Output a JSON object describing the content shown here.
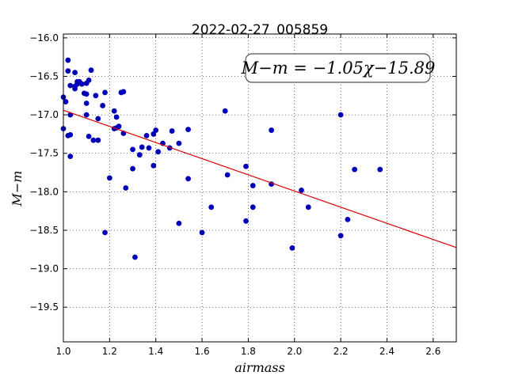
{
  "chart_data": {
    "type": "scatter",
    "title": "2022-02-27_005859",
    "xlabel": "airmass",
    "ylabel": "M−m",
    "xlim": [
      1.0,
      2.7
    ],
    "ylim": [
      -19.95,
      -15.95
    ],
    "y_inverted": true,
    "grid": true,
    "x_ticks": [
      "1.0",
      "1.2",
      "1.4",
      "1.6",
      "1.8",
      "2.0",
      "2.2",
      "2.4",
      "2.6"
    ],
    "y_ticks": [
      "−16.0",
      "−16.5",
      "−17.0",
      "−17.5",
      "−18.0",
      "−18.5",
      "−19.0",
      "−19.5"
    ],
    "annotation": "M−m = −1.05χ−15.89",
    "fit": {
      "slope": -1.05,
      "intercept": -15.89,
      "color": "#dd0000"
    },
    "point_color": "#0000bb",
    "series": [
      {
        "points": [
          [
            1.0,
            -16.77
          ],
          [
            1.0,
            -17.18
          ],
          [
            1.01,
            -16.83
          ],
          [
            1.02,
            -16.29
          ],
          [
            1.02,
            -17.27
          ],
          [
            1.02,
            -16.43
          ],
          [
            1.03,
            -16.62
          ],
          [
            1.03,
            -17.0
          ],
          [
            1.03,
            -17.26
          ],
          [
            1.03,
            -17.54
          ],
          [
            1.05,
            -16.45
          ],
          [
            1.05,
            -16.66
          ],
          [
            1.05,
            -16.63
          ],
          [
            1.06,
            -16.57
          ],
          [
            1.06,
            -16.6
          ],
          [
            1.07,
            -16.57
          ],
          [
            1.08,
            -16.6
          ],
          [
            1.09,
            -16.72
          ],
          [
            1.1,
            -16.73
          ],
          [
            1.1,
            -16.59
          ],
          [
            1.1,
            -17.0
          ],
          [
            1.1,
            -16.85
          ],
          [
            1.11,
            -16.55
          ],
          [
            1.11,
            -17.28
          ],
          [
            1.12,
            -16.42
          ],
          [
            1.13,
            -17.33
          ],
          [
            1.14,
            -16.75
          ],
          [
            1.15,
            -17.05
          ],
          [
            1.15,
            -17.33
          ],
          [
            1.17,
            -16.88
          ],
          [
            1.18,
            -16.71
          ],
          [
            1.18,
            -18.53
          ],
          [
            1.2,
            -17.82
          ],
          [
            1.22,
            -16.95
          ],
          [
            1.22,
            -17.18
          ],
          [
            1.23,
            -17.03
          ],
          [
            1.23,
            -17.17
          ],
          [
            1.24,
            -17.15
          ],
          [
            1.25,
            -16.71
          ],
          [
            1.26,
            -16.7
          ],
          [
            1.26,
            -17.24
          ],
          [
            1.27,
            -17.95
          ],
          [
            1.3,
            -17.45
          ],
          [
            1.3,
            -17.7
          ],
          [
            1.31,
            -18.85
          ],
          [
            1.33,
            -17.52
          ],
          [
            1.34,
            -17.42
          ],
          [
            1.36,
            -17.27
          ],
          [
            1.37,
            -17.43
          ],
          [
            1.39,
            -17.66
          ],
          [
            1.39,
            -17.25
          ],
          [
            1.4,
            -17.2
          ],
          [
            1.41,
            -17.48
          ],
          [
            1.43,
            -17.37
          ],
          [
            1.46,
            -17.43
          ],
          [
            1.47,
            -17.21
          ],
          [
            1.5,
            -17.37
          ],
          [
            1.5,
            -18.41
          ],
          [
            1.54,
            -17.19
          ],
          [
            1.54,
            -17.83
          ],
          [
            1.6,
            -18.53
          ],
          [
            1.64,
            -18.2
          ],
          [
            1.7,
            -16.95
          ],
          [
            1.71,
            -17.78
          ],
          [
            1.79,
            -17.67
          ],
          [
            1.79,
            -18.38
          ],
          [
            1.82,
            -17.92
          ],
          [
            1.82,
            -18.2
          ],
          [
            1.9,
            -17.2
          ],
          [
            1.9,
            -17.9
          ],
          [
            1.99,
            -18.73
          ],
          [
            2.03,
            -17.98
          ],
          [
            2.06,
            -18.2
          ],
          [
            2.2,
            -17.0
          ],
          [
            2.2,
            -18.57
          ],
          [
            2.23,
            -18.36
          ],
          [
            2.26,
            -17.71
          ],
          [
            2.37,
            -17.71
          ]
        ]
      }
    ]
  }
}
